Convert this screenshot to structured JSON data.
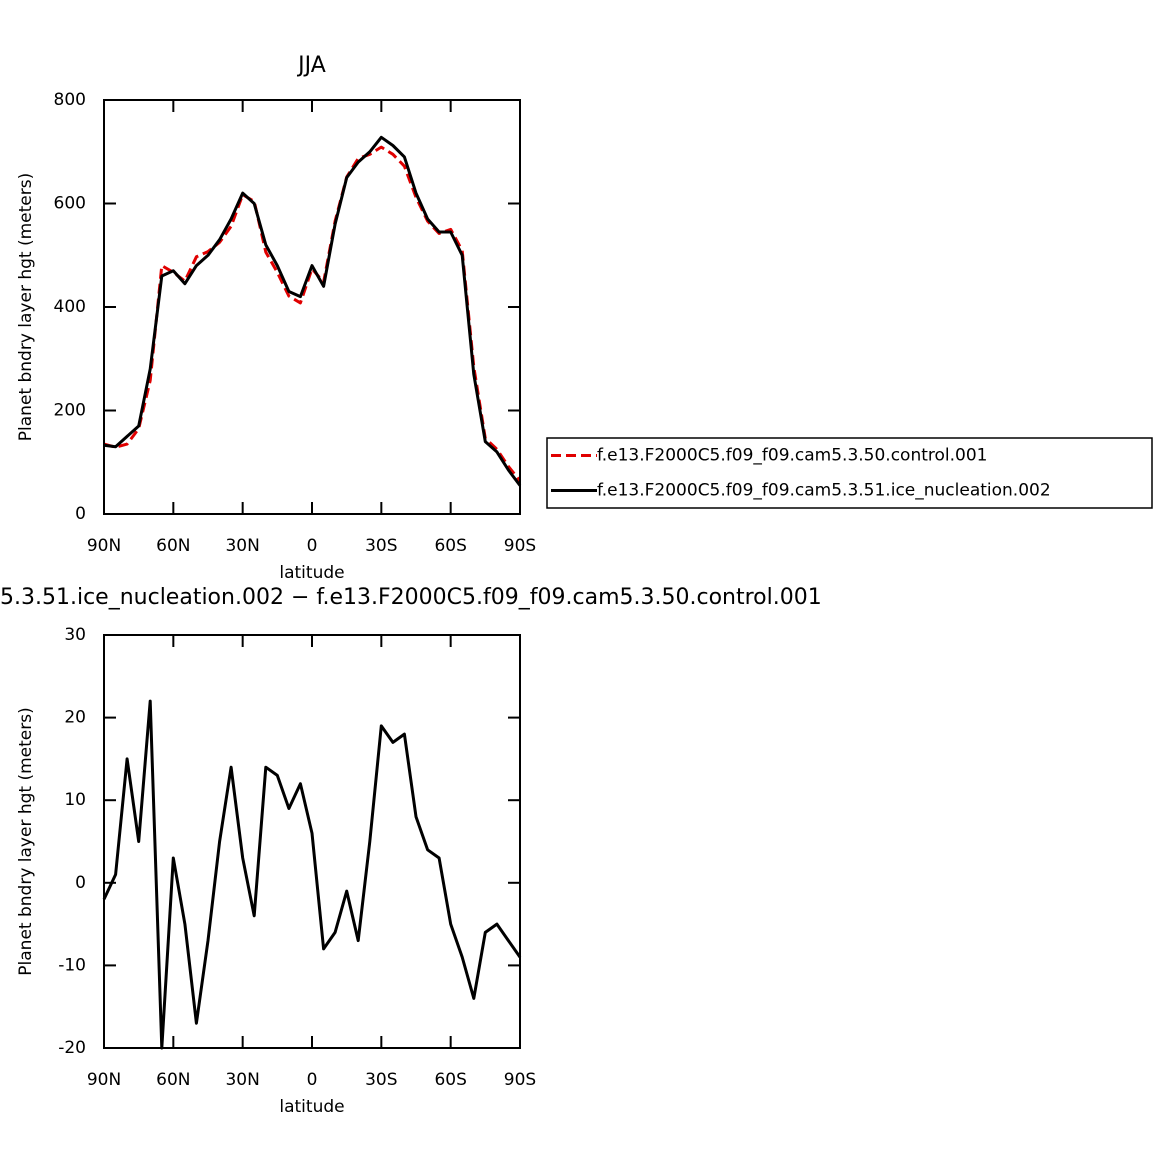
{
  "chart_data": [
    {
      "type": "line",
      "title": "JJA",
      "xlabel": "latitude",
      "ylabel": "Planet bndry layer hgt (meters)",
      "x": [
        90,
        85,
        80,
        75,
        70,
        65,
        60,
        55,
        50,
        45,
        40,
        35,
        30,
        25,
        20,
        15,
        10,
        5,
        0,
        -5,
        -10,
        -15,
        -20,
        -25,
        -30,
        -35,
        -40,
        -45,
        -50,
        -55,
        -60,
        -65,
        -70,
        -75,
        -80,
        -85,
        -90
      ],
      "xlim": [
        90,
        -90
      ],
      "xticks": [
        {
          "value": 90,
          "label": "90N"
        },
        {
          "value": 60,
          "label": "60N"
        },
        {
          "value": 30,
          "label": "30N"
        },
        0,
        {
          "value": -30,
          "label": "30S"
        },
        {
          "value": -60,
          "label": "60S"
        },
        {
          "value": -90,
          "label": "90S"
        }
      ],
      "ylim": [
        0,
        800
      ],
      "yticks": [
        0,
        200,
        400,
        600,
        800
      ],
      "series": [
        {
          "name": "f.e13.F2000C5.f09_f09.cam5.3.50.control.001",
          "color": "#e00000",
          "dashed": true,
          "values": [
            135,
            129,
            135,
            165,
            258,
            480,
            467,
            450,
            497,
            507,
            525,
            556,
            617,
            604,
            506,
            467,
            421,
            408,
            474,
            448,
            566,
            651,
            687,
            695,
            709,
            695,
            672,
            612,
            566,
            542,
            550,
            509,
            284,
            146,
            125,
            92,
            64
          ]
        },
        {
          "name": "f.e13.F2000C5.f09_f09.cam5.3.51.ice_nucleation.002",
          "color": "#000000",
          "dashed": false,
          "values": [
            133,
            130,
            150,
            170,
            280,
            460,
            470,
            445,
            480,
            500,
            530,
            570,
            620,
            600,
            520,
            480,
            430,
            420,
            480,
            440,
            560,
            650,
            680,
            700,
            728,
            712,
            690,
            620,
            570,
            545,
            545,
            500,
            270,
            140,
            120,
            85,
            55
          ]
        }
      ]
    },
    {
      "type": "line",
      "title": "5.3.51.ice_nucleation.002 − f.e13.F2000C5.f09_f09.cam5.3.50.control.001",
      "xlabel": "latitude",
      "ylabel": "Planet bndry layer hgt (meters)",
      "x": [
        90,
        85,
        80,
        75,
        70,
        65,
        60,
        55,
        50,
        45,
        40,
        35,
        30,
        25,
        20,
        15,
        10,
        5,
        0,
        -5,
        -10,
        -15,
        -20,
        -25,
        -30,
        -35,
        -40,
        -45,
        -50,
        -55,
        -60,
        -65,
        -70,
        -75,
        -80,
        -85,
        -90
      ],
      "xlim": [
        90,
        -90
      ],
      "xticks": [
        {
          "value": 90,
          "label": "90N"
        },
        {
          "value": 60,
          "label": "60N"
        },
        {
          "value": 30,
          "label": "30N"
        },
        0,
        {
          "value": -30,
          "label": "30S"
        },
        {
          "value": -60,
          "label": "60S"
        },
        {
          "value": -90,
          "label": "90S"
        }
      ],
      "ylim": [
        -20,
        30
      ],
      "yticks": [
        -20,
        -10,
        0,
        10,
        20,
        30
      ],
      "series": [
        {
          "color": "#000000",
          "dashed": false,
          "values": [
            -2,
            1,
            15,
            5,
            22,
            -20,
            3,
            -5,
            -17,
            -7,
            5,
            14,
            3,
            -4,
            14,
            13,
            9,
            12,
            6,
            -8,
            -6,
            -1,
            -7,
            5,
            19,
            17,
            18,
            8,
            4,
            3,
            -5,
            -9,
            -14,
            -6,
            -5,
            -7,
            -9
          ]
        }
      ]
    }
  ]
}
